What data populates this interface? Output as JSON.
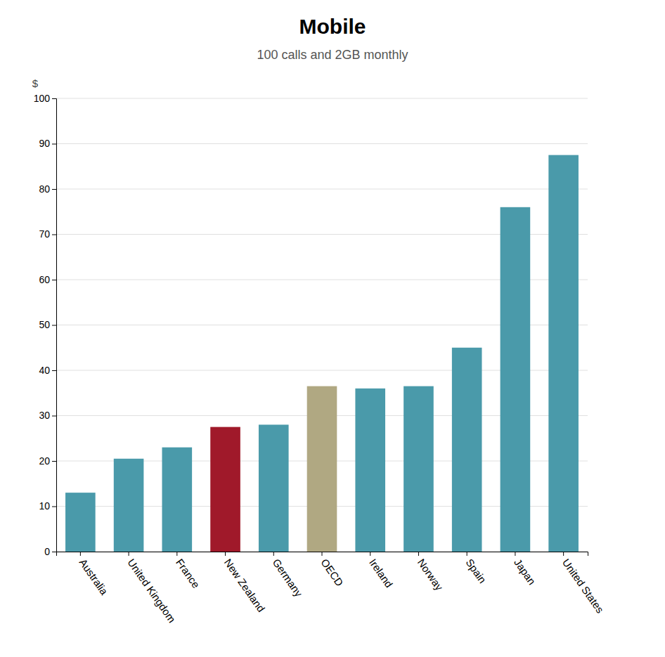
{
  "chart_data": {
    "type": "bar",
    "title": "Mobile",
    "subtitle": "100 calls and 2GB monthly",
    "y_label": "$",
    "categories": [
      "Australia",
      "United Kingdom",
      "France",
      "New Zealand",
      "Germany",
      "OECD",
      "Ireland",
      "Norway",
      "Spain",
      "Japan",
      "United States"
    ],
    "values": [
      13.0,
      20.5,
      23.0,
      27.5,
      28.0,
      36.5,
      36.0,
      36.5,
      45.0,
      76.0,
      87.5
    ],
    "colors": [
      "#4a9aaa",
      "#4a9aaa",
      "#4a9aaa",
      "#a0192a",
      "#4a9aaa",
      "#b0a882",
      "#4a9aaa",
      "#4a9aaa",
      "#4a9aaa",
      "#4a9aaa",
      "#4a9aaa"
    ],
    "ylim": [
      0,
      100
    ],
    "yticks": [
      0,
      10,
      20,
      30,
      40,
      50,
      60,
      70,
      80,
      90,
      100
    ],
    "grid": true
  }
}
